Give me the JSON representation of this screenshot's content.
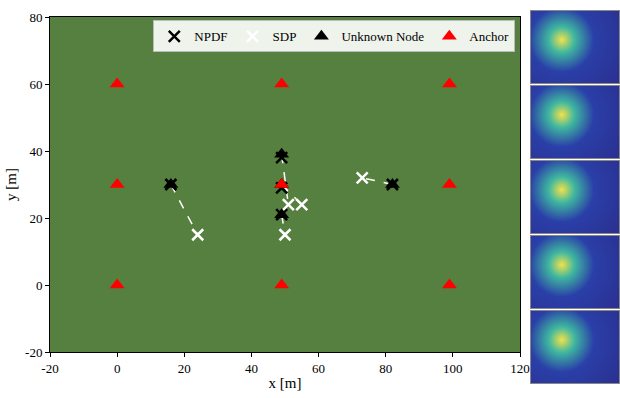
{
  "chart_data": {
    "type": "scatter",
    "xlabel": "x [m]",
    "ylabel": "y [m]",
    "xlim": [
      -20,
      120
    ],
    "xticks": [
      -20,
      0,
      20,
      40,
      60,
      80,
      100,
      120
    ],
    "ylim": [
      -20,
      80
    ],
    "yticks": [
      -20,
      0,
      20,
      40,
      60,
      80
    ],
    "grid": false,
    "legend": "top right",
    "series": [
      {
        "name": "NPDF",
        "color": "#000000",
        "marker": "x",
        "x": [
          16,
          49,
          49,
          49,
          82
        ],
        "values": [
          30,
          38,
          29,
          21,
          30
        ]
      },
      {
        "name": "SDP",
        "color": "#ffffff",
        "marker": "x",
        "x": [
          24,
          51,
          55,
          50,
          73
        ],
        "values": [
          15,
          24,
          24,
          15,
          32
        ]
      },
      {
        "name": "Unknown Node",
        "color": "#000000",
        "marker": "triangle-up",
        "x": [
          16,
          49,
          49,
          49,
          82
        ],
        "values": [
          30,
          39,
          30,
          21,
          30
        ]
      },
      {
        "name": "Anchor",
        "color": "#ff0000",
        "marker": "triangle-up",
        "x": [
          0,
          0,
          0,
          49,
          49,
          49,
          99,
          99,
          99
        ],
        "values": [
          0,
          30,
          60,
          0,
          30,
          60,
          0,
          30,
          60
        ]
      }
    ]
  }
}
